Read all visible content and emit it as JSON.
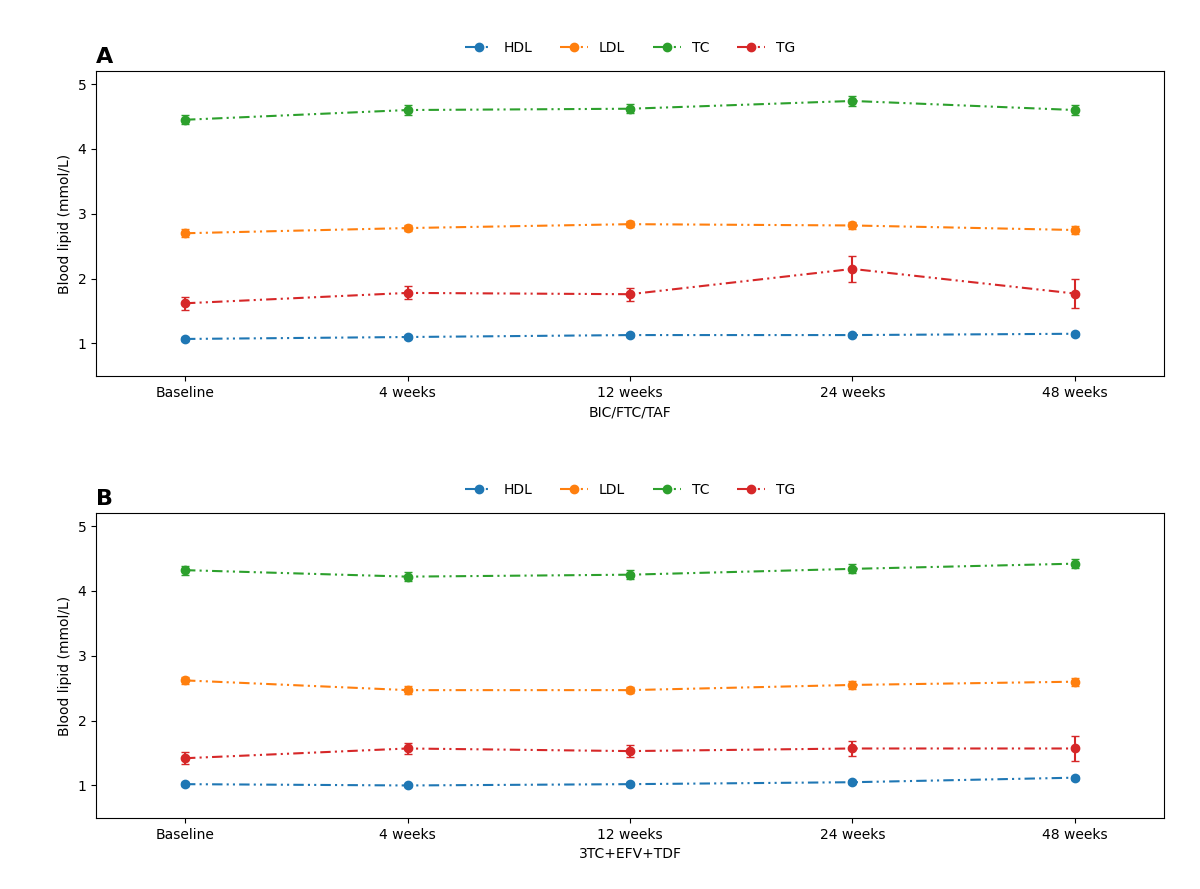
{
  "chart_data": [
    {
      "type": "line",
      "title": "A",
      "xlabel": "BIC/FTC/TAF",
      "ylabel": "Blood lipid (mmol/L)",
      "categories": [
        "Baseline",
        "4 weeks",
        "12 weeks",
        "24 weeks",
        "48 weeks"
      ],
      "series": [
        {
          "name": "HDL",
          "values": [
            1.07,
            1.1,
            1.13,
            1.13,
            1.15
          ],
          "errors": [
            0.03,
            0.03,
            0.03,
            0.03,
            0.03
          ]
        },
        {
          "name": "LDL",
          "values": [
            2.7,
            2.78,
            2.84,
            2.82,
            2.75
          ],
          "errors": [
            0.06,
            0.05,
            0.05,
            0.06,
            0.06
          ]
        },
        {
          "name": "TC",
          "values": [
            4.45,
            4.6,
            4.62,
            4.74,
            4.6
          ],
          "errors": [
            0.07,
            0.07,
            0.07,
            0.08,
            0.08
          ]
        },
        {
          "name": "TG",
          "values": [
            1.62,
            1.78,
            1.76,
            2.15,
            1.77
          ],
          "errors": [
            0.1,
            0.1,
            0.1,
            0.2,
            0.22
          ]
        }
      ],
      "ylim": [
        0.5,
        5.2
      ],
      "yticks": [
        1,
        2,
        3,
        4,
        5
      ],
      "marker": "circle",
      "line_style": "dashdotdot",
      "grid": false,
      "legend": "upper center"
    },
    {
      "type": "line",
      "title": "B",
      "xlabel": "3TC+EFV+TDF",
      "ylabel": "Blood lipid (mmol/L)",
      "categories": [
        "Baseline",
        "4 weeks",
        "12 weeks",
        "24 weeks",
        "48 weeks"
      ],
      "series": [
        {
          "name": "HDL",
          "values": [
            1.02,
            1.0,
            1.02,
            1.05,
            1.12
          ],
          "errors": [
            0.03,
            0.03,
            0.03,
            0.03,
            0.03
          ]
        },
        {
          "name": "LDL",
          "values": [
            2.62,
            2.47,
            2.47,
            2.55,
            2.6
          ],
          "errors": [
            0.06,
            0.06,
            0.05,
            0.06,
            0.06
          ]
        },
        {
          "name": "TC",
          "values": [
            4.32,
            4.22,
            4.25,
            4.34,
            4.42
          ],
          "errors": [
            0.07,
            0.07,
            0.07,
            0.07,
            0.07
          ]
        },
        {
          "name": "TG",
          "values": [
            1.42,
            1.57,
            1.53,
            1.57,
            1.57
          ],
          "errors": [
            0.09,
            0.09,
            0.09,
            0.12,
            0.2
          ]
        }
      ],
      "ylim": [
        0.5,
        5.2
      ],
      "yticks": [
        1,
        2,
        3,
        4,
        5
      ],
      "marker": "circle",
      "line_style": "dashdotdot",
      "grid": false,
      "legend": "upper center"
    }
  ]
}
